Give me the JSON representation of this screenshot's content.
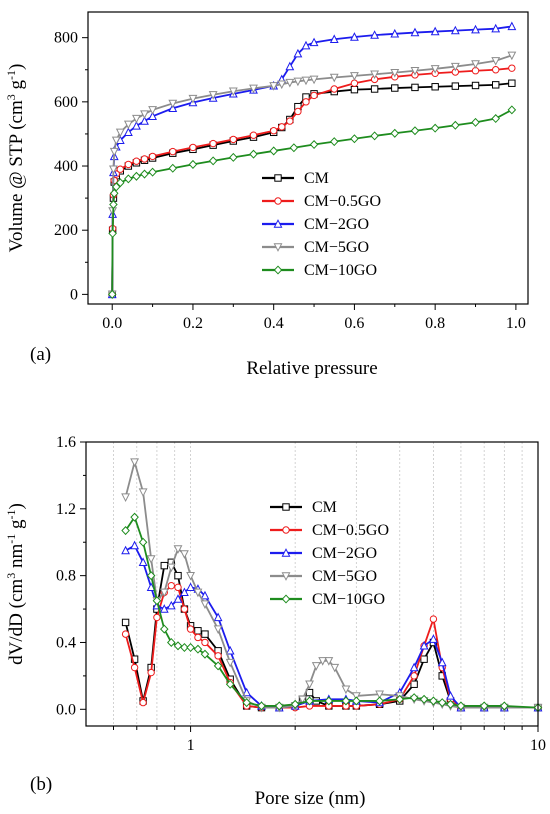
{
  "chart_data": [
    {
      "type": "line",
      "panel_label": "(a)",
      "xlabel": "Relative pressure",
      "ylabel": "Volume @ STP (cm",
      "ylabel_sup1": "3",
      "ylabel_mid": " g",
      "ylabel_sup2": "-1",
      "ylabel_end": ")",
      "xlim": [
        -0.06,
        1.03
      ],
      "ylim": [
        -30,
        880
      ],
      "xticks": [
        0.0,
        0.2,
        0.4,
        0.6,
        0.8,
        1.0
      ],
      "xtick_labels": [
        "0.0",
        "0.2",
        "0.4",
        "0.6",
        "0.8",
        "1.0"
      ],
      "yticks": [
        0,
        200,
        400,
        600,
        800
      ],
      "ytick_labels": [
        "0",
        "200",
        "400",
        "600",
        "800"
      ],
      "legend_position": "center-right",
      "series": [
        {
          "name": "CM",
          "color": "#000000",
          "marker": "square",
          "x": [
            0.0,
            0.001,
            0.003,
            0.005,
            0.01,
            0.02,
            0.04,
            0.06,
            0.08,
            0.1,
            0.15,
            0.2,
            0.25,
            0.3,
            0.35,
            0.4,
            0.42,
            0.44,
            0.46,
            0.48,
            0.5,
            0.55,
            0.6,
            0.65,
            0.7,
            0.75,
            0.8,
            0.85,
            0.9,
            0.95,
            0.99
          ],
          "y": [
            0,
            200,
            300,
            350,
            370,
            385,
            400,
            410,
            418,
            425,
            440,
            452,
            465,
            478,
            490,
            505,
            520,
            545,
            585,
            615,
            625,
            632,
            638,
            640,
            643,
            645,
            647,
            649,
            651,
            653,
            658
          ]
        },
        {
          "name": "CM−0.5GO",
          "color": "#ee1c1c",
          "marker": "circle",
          "x": [
            0.0,
            0.001,
            0.003,
            0.005,
            0.01,
            0.02,
            0.04,
            0.06,
            0.08,
            0.1,
            0.15,
            0.2,
            0.25,
            0.3,
            0.35,
            0.4,
            0.42,
            0.44,
            0.46,
            0.48,
            0.5,
            0.55,
            0.6,
            0.65,
            0.7,
            0.75,
            0.8,
            0.85,
            0.9,
            0.95,
            0.99
          ],
          "y": [
            0,
            205,
            310,
            355,
            375,
            390,
            405,
            415,
            422,
            430,
            445,
            458,
            470,
            483,
            496,
            510,
            522,
            540,
            570,
            600,
            620,
            640,
            658,
            670,
            678,
            684,
            689,
            693,
            697,
            700,
            705
          ]
        },
        {
          "name": "CM−2GO",
          "color": "#1c1cee",
          "marker": "triangle",
          "x": [
            0.0,
            0.001,
            0.003,
            0.005,
            0.01,
            0.02,
            0.04,
            0.06,
            0.08,
            0.1,
            0.15,
            0.2,
            0.25,
            0.3,
            0.35,
            0.4,
            0.42,
            0.44,
            0.46,
            0.48,
            0.5,
            0.55,
            0.6,
            0.65,
            0.7,
            0.75,
            0.8,
            0.85,
            0.9,
            0.95,
            0.99
          ],
          "y": [
            0,
            250,
            380,
            430,
            460,
            480,
            505,
            525,
            540,
            555,
            580,
            598,
            612,
            625,
            637,
            650,
            670,
            710,
            750,
            775,
            785,
            795,
            802,
            808,
            812,
            816,
            819,
            822,
            825,
            828,
            835
          ]
        },
        {
          "name": "CM−5GO",
          "color": "#8c8c8c",
          "marker": "down-triangle",
          "x": [
            0.0,
            0.001,
            0.003,
            0.005,
            0.01,
            0.02,
            0.04,
            0.06,
            0.08,
            0.1,
            0.15,
            0.2,
            0.25,
            0.3,
            0.35,
            0.4,
            0.42,
            0.44,
            0.46,
            0.48,
            0.5,
            0.55,
            0.6,
            0.65,
            0.7,
            0.75,
            0.8,
            0.85,
            0.9,
            0.95,
            0.99
          ],
          "y": [
            0,
            260,
            390,
            445,
            480,
            505,
            530,
            548,
            562,
            575,
            595,
            610,
            622,
            633,
            642,
            650,
            655,
            660,
            664,
            667,
            670,
            676,
            681,
            686,
            691,
            697,
            703,
            710,
            718,
            728,
            745
          ]
        },
        {
          "name": "CM−10GO",
          "color": "#1e8c1e",
          "marker": "diamond",
          "x": [
            0.0,
            0.001,
            0.003,
            0.005,
            0.01,
            0.02,
            0.04,
            0.06,
            0.08,
            0.1,
            0.15,
            0.2,
            0.25,
            0.3,
            0.35,
            0.4,
            0.45,
            0.5,
            0.55,
            0.6,
            0.65,
            0.7,
            0.75,
            0.8,
            0.85,
            0.9,
            0.95,
            0.99
          ],
          "y": [
            0,
            190,
            280,
            315,
            335,
            348,
            360,
            368,
            375,
            381,
            393,
            405,
            416,
            427,
            437,
            447,
            457,
            467,
            476,
            485,
            494,
            502,
            510,
            518,
            527,
            536,
            548,
            575
          ]
        }
      ]
    },
    {
      "type": "line",
      "panel_label": "(b)",
      "xlabel": "Pore size (nm)",
      "ylabel": "dV/dD (cm",
      "ylabel_sup1": "3",
      "ylabel_mid": " nm",
      "ylabel_sup2": "-1",
      "ylabel_mid2": " g",
      "ylabel_sup3": "-1",
      "ylabel_end": ")",
      "xscale": "log",
      "xlim": [
        0.5,
        10
      ],
      "ylim": [
        -0.1,
        1.6
      ],
      "xticks": [
        1,
        10
      ],
      "xtick_labels": [
        "1",
        "10"
      ],
      "yticks": [
        0.0,
        0.4,
        0.8,
        1.2,
        1.6
      ],
      "ytick_labels": [
        "0.0",
        "0.4",
        "0.8",
        "1.2",
        "1.6"
      ],
      "grid": "vertical dotted at log minors",
      "legend_position": "center",
      "series": [
        {
          "name": "CM",
          "color": "#000000",
          "marker": "square",
          "x": [
            0.65,
            0.69,
            0.73,
            0.77,
            0.8,
            0.84,
            0.88,
            0.92,
            0.96,
            1.0,
            1.05,
            1.1,
            1.2,
            1.3,
            1.45,
            1.6,
            1.8,
            2.0,
            2.1,
            2.2,
            2.3,
            2.5,
            2.8,
            3.0,
            3.5,
            4.0,
            4.4,
            4.7,
            5.0,
            5.3,
            5.6,
            6.0,
            7.0,
            8.0,
            10.0
          ],
          "y": [
            0.52,
            0.3,
            0.05,
            0.25,
            0.6,
            0.86,
            0.88,
            0.8,
            0.6,
            0.5,
            0.47,
            0.45,
            0.35,
            0.18,
            0.02,
            0.01,
            0.01,
            0.02,
            0.06,
            0.1,
            0.05,
            0.02,
            0.02,
            0.02,
            0.03,
            0.05,
            0.15,
            0.3,
            0.4,
            0.2,
            0.05,
            0.01,
            0.01,
            0.01,
            0.01
          ]
        },
        {
          "name": "CM−0.5GO",
          "color": "#ee1c1c",
          "marker": "circle",
          "x": [
            0.65,
            0.69,
            0.73,
            0.77,
            0.8,
            0.84,
            0.88,
            0.92,
            0.96,
            1.0,
            1.05,
            1.1,
            1.2,
            1.3,
            1.45,
            1.6,
            1.8,
            2.0,
            2.2,
            2.5,
            2.8,
            3.0,
            3.5,
            4.0,
            4.4,
            4.7,
            5.0,
            5.3,
            5.6,
            6.0,
            7.0,
            8.0,
            10.0
          ],
          "y": [
            0.45,
            0.25,
            0.04,
            0.22,
            0.55,
            0.7,
            0.74,
            0.73,
            0.6,
            0.48,
            0.43,
            0.4,
            0.32,
            0.16,
            0.02,
            0.01,
            0.01,
            0.01,
            0.02,
            0.02,
            0.02,
            0.02,
            0.03,
            0.06,
            0.2,
            0.38,
            0.54,
            0.25,
            0.06,
            0.01,
            0.01,
            0.01,
            0.01
          ]
        },
        {
          "name": "CM−2GO",
          "color": "#1c1cee",
          "marker": "triangle",
          "x": [
            0.65,
            0.69,
            0.73,
            0.77,
            0.8,
            0.84,
            0.88,
            0.92,
            0.96,
            1.0,
            1.05,
            1.1,
            1.2,
            1.3,
            1.45,
            1.6,
            1.8,
            2.0,
            2.2,
            2.5,
            2.8,
            3.0,
            3.5,
            4.0,
            4.4,
            4.7,
            5.0,
            5.3,
            5.6,
            6.0,
            7.0,
            8.0,
            10.0
          ],
          "y": [
            0.95,
            0.98,
            0.88,
            0.73,
            0.62,
            0.6,
            0.62,
            0.66,
            0.7,
            0.73,
            0.72,
            0.68,
            0.55,
            0.35,
            0.1,
            0.02,
            0.01,
            0.02,
            0.05,
            0.06,
            0.06,
            0.05,
            0.04,
            0.1,
            0.25,
            0.38,
            0.42,
            0.28,
            0.08,
            0.01,
            0.01,
            0.01,
            0.01
          ]
        },
        {
          "name": "CM−5GO",
          "color": "#8c8c8c",
          "marker": "down-triangle",
          "x": [
            0.65,
            0.69,
            0.73,
            0.77,
            0.8,
            0.84,
            0.88,
            0.92,
            0.96,
            1.0,
            1.05,
            1.1,
            1.2,
            1.3,
            1.45,
            1.6,
            1.8,
            2.0,
            2.1,
            2.2,
            2.3,
            2.4,
            2.5,
            2.6,
            2.8,
            3.0,
            3.5,
            4.0,
            4.4,
            4.7,
            5.0,
            5.3,
            5.6,
            6.0,
            7.0,
            8.0,
            10.0
          ],
          "y": [
            1.27,
            1.48,
            1.3,
            0.9,
            0.65,
            0.7,
            0.85,
            0.96,
            0.93,
            0.8,
            0.7,
            0.63,
            0.48,
            0.28,
            0.05,
            0.01,
            0.01,
            0.02,
            0.06,
            0.15,
            0.26,
            0.29,
            0.29,
            0.25,
            0.12,
            0.08,
            0.09,
            0.08,
            0.06,
            0.05,
            0.04,
            0.03,
            0.02,
            0.01,
            0.01,
            0.01,
            0.01
          ]
        },
        {
          "name": "CM−10GO",
          "color": "#1e8c1e",
          "marker": "diamond",
          "x": [
            0.65,
            0.69,
            0.73,
            0.77,
            0.8,
            0.84,
            0.88,
            0.92,
            0.96,
            1.0,
            1.05,
            1.1,
            1.2,
            1.3,
            1.45,
            1.6,
            1.8,
            2.0,
            2.2,
            2.5,
            2.8,
            3.0,
            3.5,
            4.0,
            4.4,
            4.7,
            5.0,
            5.3,
            5.6,
            6.0,
            7.0,
            8.0,
            10.0
          ],
          "y": [
            1.07,
            1.15,
            1.0,
            0.8,
            0.65,
            0.48,
            0.4,
            0.38,
            0.37,
            0.37,
            0.36,
            0.33,
            0.26,
            0.15,
            0.04,
            0.02,
            0.02,
            0.03,
            0.05,
            0.05,
            0.05,
            0.05,
            0.05,
            0.06,
            0.07,
            0.06,
            0.05,
            0.04,
            0.03,
            0.02,
            0.02,
            0.02,
            0.01
          ]
        }
      ]
    }
  ]
}
